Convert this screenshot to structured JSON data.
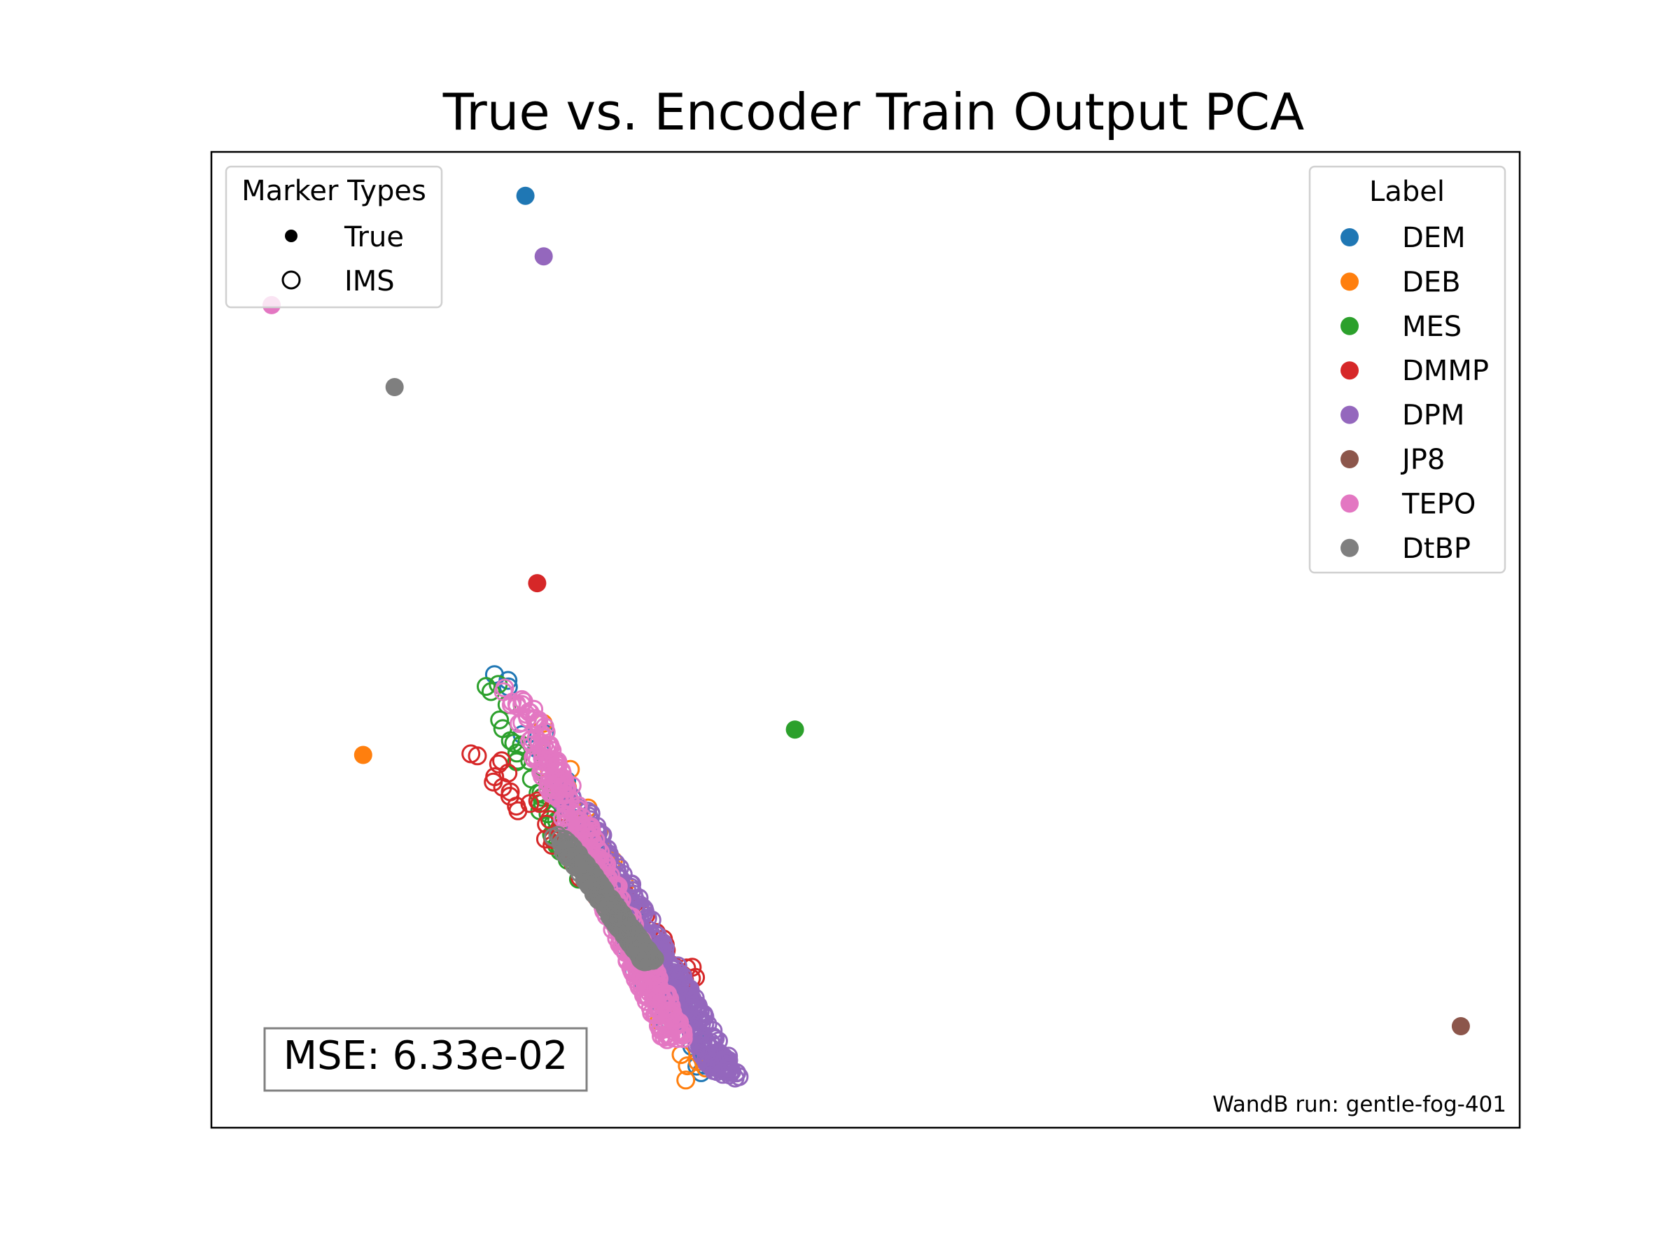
{
  "chart_data": {
    "type": "scatter",
    "title": "True vs. Encoder Train Output PCA",
    "xlabel": "",
    "ylabel": "",
    "xlim": [
      0,
      100
    ],
    "ylim": [
      0,
      100
    ],
    "axis_ticks_visible": false,
    "grid": false,
    "colors": {
      "DEM": "#1f77b4",
      "DEB": "#ff7f0e",
      "MES": "#2ca02c",
      "DMMP": "#d62728",
      "DPM": "#9467bd",
      "JP8": "#8c564b",
      "TEPO": "#e377c2",
      "DtBP": "#7f7f7f"
    },
    "label_legend": {
      "title": "Label",
      "placement": "top-right",
      "entries": [
        "DEM",
        "DEB",
        "MES",
        "DMMP",
        "DPM",
        "JP8",
        "TEPO",
        "DtBP"
      ]
    },
    "marker_legend": {
      "title": "Marker Types",
      "placement": "top-left",
      "entries": [
        {
          "label": "True",
          "marker": "filled-circle"
        },
        {
          "label": "IMS",
          "marker": "hollow-circle"
        }
      ]
    },
    "true_points": [
      {
        "label": "DEM",
        "x": 24.0,
        "y": 95.5
      },
      {
        "label": "DPM",
        "x": 25.4,
        "y": 89.3
      },
      {
        "label": "TEPO",
        "x": 4.6,
        "y": 84.3
      },
      {
        "label": "DtBP",
        "x": 14.0,
        "y": 75.9
      },
      {
        "label": "DMMP",
        "x": 24.9,
        "y": 55.8
      },
      {
        "label": "MES",
        "x": 44.6,
        "y": 40.8
      },
      {
        "label": "DEB",
        "x": 11.6,
        "y": 38.2
      },
      {
        "label": "JP8",
        "x": 95.5,
        "y": 10.4
      }
    ],
    "ims_series": [
      {
        "label": "DEM",
        "x_range": [
          21.5,
          37.5
        ],
        "y_range": [
          5.5,
          48.0
        ],
        "n": 80
      },
      {
        "label": "DEB",
        "x_range": [
          24.0,
          37.5
        ],
        "y_range": [
          4.2,
          44.5
        ],
        "n": 45
      },
      {
        "label": "MES",
        "x_range": [
          20.5,
          28.0
        ],
        "y_range": [
          25.0,
          48.0
        ],
        "n": 35
      },
      {
        "label": "DMMP",
        "x_range": [
          20.0,
          36.5
        ],
        "y_range": [
          15.0,
          39.5
        ],
        "n": 70
      },
      {
        "label": "DPM",
        "x_range": [
          27.0,
          39.5
        ],
        "y_range": [
          5.0,
          35.0
        ],
        "n": 380
      },
      {
        "label": "TEPO",
        "x_range": [
          23.0,
          35.5
        ],
        "y_range": [
          9.0,
          45.5
        ],
        "n": 420
      },
      {
        "label": "DtBP",
        "x_range": [
          26.5,
          33.5
        ],
        "y_range": [
          17.0,
          30.0
        ],
        "n": 360
      }
    ],
    "annotations": {
      "mse": "MSE: 6.33e-02",
      "run": "WandB run: gentle-fog-401"
    }
  }
}
